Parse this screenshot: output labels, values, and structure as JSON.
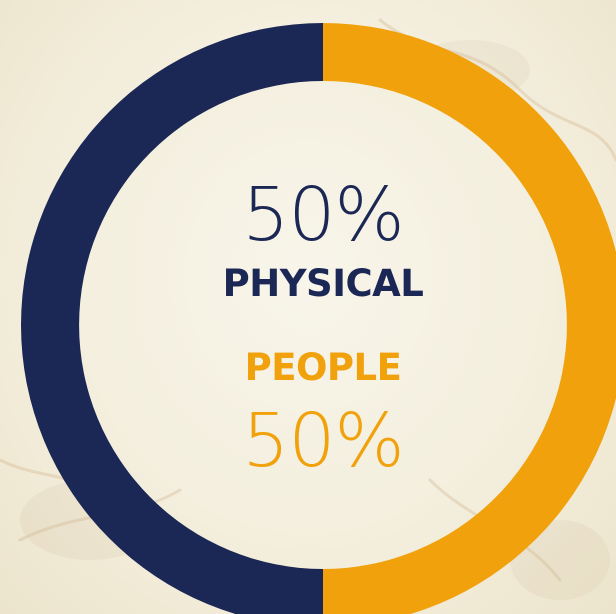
{
  "colors": {
    "physical": "#1b2754",
    "people": "#f0a10c",
    "background": "#f6f2e4"
  },
  "chart_data": {
    "type": "pie",
    "categories": [
      "PHYSICAL",
      "PEOPLE"
    ],
    "values": [
      50,
      50
    ],
    "labels": {
      "physical_percent": "50%",
      "physical_name": "PHYSICAL",
      "people_name": "PEOPLE",
      "people_percent": "50%"
    }
  }
}
